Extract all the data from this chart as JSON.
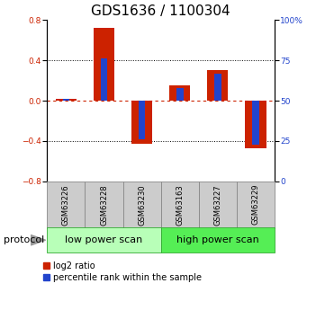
{
  "title": "GDS1636 / 1100304",
  "samples": [
    "GSM63226",
    "GSM63228",
    "GSM63230",
    "GSM63163",
    "GSM63227",
    "GSM63229"
  ],
  "log2_ratio": [
    0.02,
    0.72,
    -0.43,
    0.15,
    0.3,
    -0.47
  ],
  "percentile_rank": [
    51,
    76,
    26,
    58,
    67,
    23
  ],
  "groups": [
    {
      "label": "low power scan",
      "indices": [
        0,
        1,
        2
      ],
      "color": "#b8ffb8"
    },
    {
      "label": "high power scan",
      "indices": [
        3,
        4,
        5
      ],
      "color": "#55ee55"
    }
  ],
  "group_label": "protocol",
  "bar_color_log2": "#cc2200",
  "bar_color_pct": "#2244cc",
  "ylim_left": [
    -0.8,
    0.8
  ],
  "ylim_right": [
    0,
    100
  ],
  "yticks_left": [
    -0.8,
    -0.4,
    0.0,
    0.4,
    0.8
  ],
  "yticks_right": [
    0,
    25,
    50,
    75,
    100
  ],
  "hline_color": "#cc2200",
  "bg_color": "#ffffff",
  "sample_box_color": "#cccccc",
  "log2_bar_width": 0.55,
  "pct_bar_width": 0.18,
  "legend_log2": "log2 ratio",
  "legend_pct": "percentile rank within the sample",
  "title_fontsize": 11,
  "tick_fontsize": 6.5,
  "sample_fontsize": 6,
  "group_fontsize": 8,
  "legend_fontsize": 7,
  "protocol_fontsize": 8
}
